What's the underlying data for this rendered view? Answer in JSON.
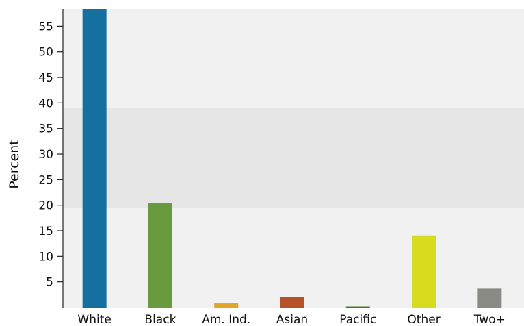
{
  "chart_data": {
    "type": "bar",
    "title": "",
    "xlabel": "",
    "ylabel": "Percent",
    "ylim": [
      0,
      58.4
    ],
    "yticks": [
      5,
      10,
      15,
      20,
      25,
      30,
      35,
      40,
      45,
      50,
      55
    ],
    "categories": [
      "White",
      "Black",
      "Am. Ind.",
      "Asian",
      "Pacific",
      "Other",
      "Two+"
    ],
    "values": [
      58.4,
      20.4,
      0.8,
      2.1,
      0.2,
      14.1,
      3.7
    ],
    "colors": [
      "#1570a0",
      "#6a9a3e",
      "#e0a62a",
      "#b5522a",
      "#3a7a2a",
      "#d8dc1f",
      "#8a8a84"
    ],
    "background_bands": [
      {
        "from": 0,
        "to": 19.5,
        "color": "#f1f1f1"
      },
      {
        "from": 19.5,
        "to": 39,
        "color": "#e6e6e6"
      },
      {
        "from": 39,
        "to": 58.4,
        "color": "#f1f1f1"
      }
    ],
    "grid": false,
    "legend": "none"
  }
}
